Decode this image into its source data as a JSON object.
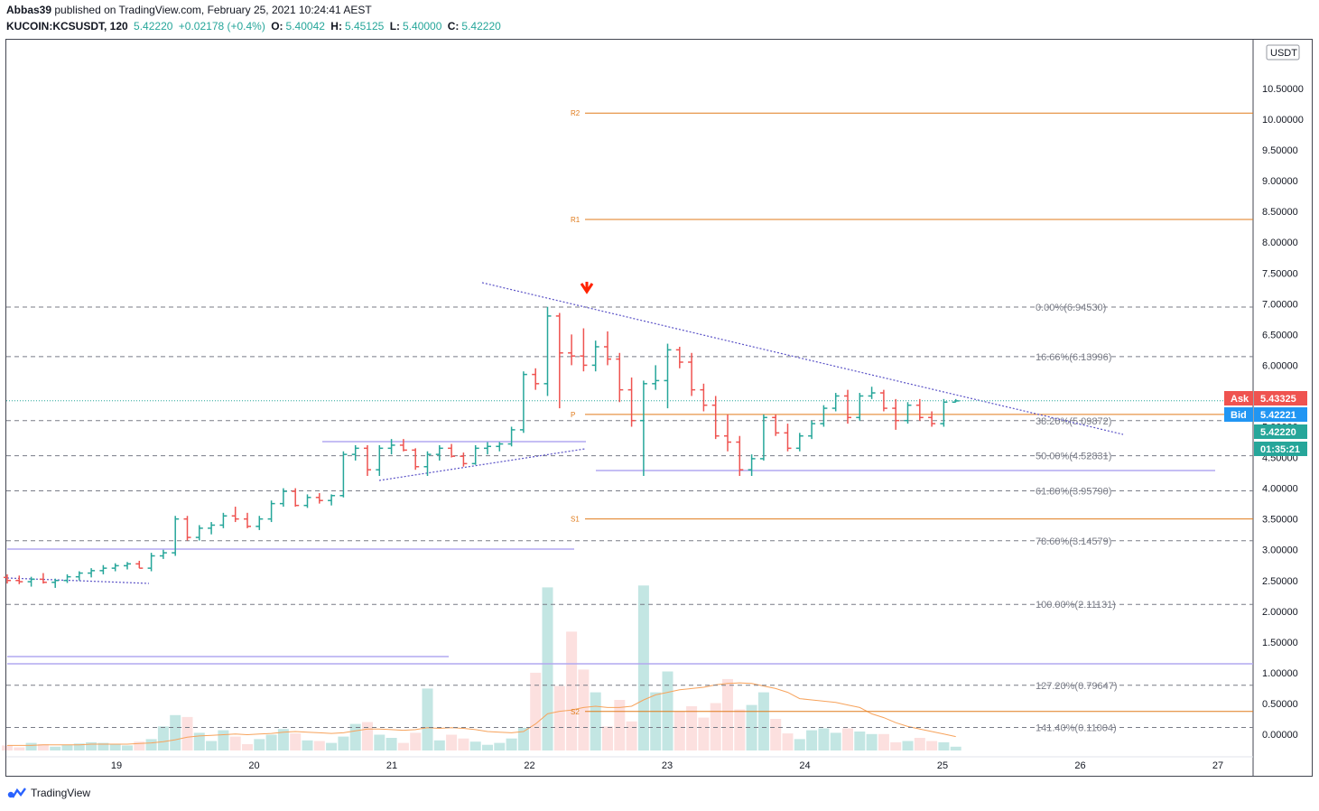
{
  "header": {
    "author": "Abbas39",
    "published_text": "published on TradingView.com, February 25, 2021 10:24:41 AEST",
    "symbol": "KUCOIN:KCSUSDT, 120",
    "last": "5.42220",
    "change": "+0.02178 (+0.4%)",
    "o_label": "O:",
    "o": "5.40042",
    "h_label": "H:",
    "h": "5.45125",
    "l_label": "L:",
    "l": "5.40000",
    "c_label": "C:",
    "c": "5.42220"
  },
  "footer": {
    "brand": "TradingView"
  },
  "colors": {
    "up": "#26a69a",
    "down": "#ef5350",
    "pivot": "#e07b1b",
    "trend": "#5b53c7",
    "fib": "#787b86",
    "ma": "#f7a35c"
  },
  "chart_data": {
    "type": "candlestick",
    "currency_badge": "USDT",
    "x_ticks": [
      "19",
      "20",
      "21",
      "22",
      "23",
      "24",
      "25",
      "26",
      "27"
    ],
    "y_ticks": [
      "0.00000",
      "0.50000",
      "1.00000",
      "1.50000",
      "2.00000",
      "2.50000",
      "3.00000",
      "3.50000",
      "4.00000",
      "4.50000",
      "5.00000",
      "5.50000",
      "6.00000",
      "6.50000",
      "7.00000",
      "7.50000",
      "8.00000",
      "8.50000",
      "9.00000",
      "9.50000",
      "10.00000",
      "10.50000"
    ],
    "ylim": [
      -0.2,
      11.2
    ],
    "fib_levels": [
      {
        "label": "0.00%(6.94530)",
        "value": 6.9453
      },
      {
        "label": "16.66%(6.13996)",
        "value": 6.13996
      },
      {
        "label": "38.20%(5.09872)",
        "value": 5.09872
      },
      {
        "label": "50.00%(4.52831)",
        "value": 4.52831
      },
      {
        "label": "61.80%(3.95790)",
        "value": 3.9579
      },
      {
        "label": "78.60%(3.14579)",
        "value": 3.14579
      },
      {
        "label": "100.00%(2.11131)",
        "value": 2.11131
      },
      {
        "label": "127.20%(0.79647)",
        "value": 0.79647
      },
      {
        "label": "141.40%(0.11004)",
        "value": 0.11004
      }
    ],
    "pivots": [
      {
        "label": "R2",
        "value": 10.1
      },
      {
        "label": "R1",
        "value": 8.37
      },
      {
        "label": "P",
        "value": 5.2
      },
      {
        "label": "S1",
        "value": 3.5
      },
      {
        "label": "S2",
        "value": 0.37
      }
    ],
    "price_tags": [
      {
        "label": "Ask",
        "value": "5.43325"
      },
      {
        "label": "Bid",
        "value": "5.42221"
      },
      {
        "label": "",
        "value": "5.42220"
      },
      {
        "label": "",
        "value": "01:35:21"
      }
    ],
    "candles": [
      [
        2.55,
        2.6,
        2.45,
        2.5
      ],
      [
        2.5,
        2.58,
        2.44,
        2.48
      ],
      [
        2.48,
        2.56,
        2.4,
        2.52
      ],
      [
        2.52,
        2.62,
        2.45,
        2.47
      ],
      [
        2.47,
        2.53,
        2.38,
        2.5
      ],
      [
        2.5,
        2.6,
        2.46,
        2.56
      ],
      [
        2.56,
        2.65,
        2.5,
        2.62
      ],
      [
        2.62,
        2.7,
        2.55,
        2.66
      ],
      [
        2.66,
        2.75,
        2.6,
        2.7
      ],
      [
        2.7,
        2.78,
        2.65,
        2.74
      ],
      [
        2.74,
        2.8,
        2.68,
        2.77
      ],
      [
        2.77,
        2.82,
        2.7,
        2.7
      ],
      [
        2.7,
        2.95,
        2.65,
        2.9
      ],
      [
        2.9,
        3.0,
        2.85,
        2.95
      ],
      [
        2.95,
        3.55,
        2.9,
        3.5
      ],
      [
        3.5,
        3.55,
        3.15,
        3.2
      ],
      [
        3.2,
        3.4,
        3.15,
        3.35
      ],
      [
        3.35,
        3.45,
        3.25,
        3.4
      ],
      [
        3.4,
        3.6,
        3.35,
        3.55
      ],
      [
        3.55,
        3.7,
        3.45,
        3.5
      ],
      [
        3.5,
        3.6,
        3.35,
        3.38
      ],
      [
        3.38,
        3.55,
        3.32,
        3.5
      ],
      [
        3.5,
        3.8,
        3.45,
        3.75
      ],
      [
        3.75,
        4.0,
        3.7,
        3.95
      ],
      [
        3.95,
        4.0,
        3.7,
        3.72
      ],
      [
        3.72,
        3.9,
        3.68,
        3.85
      ],
      [
        3.85,
        3.92,
        3.75,
        3.8
      ],
      [
        3.8,
        3.9,
        3.72,
        3.88
      ],
      [
        3.88,
        4.6,
        3.85,
        4.55
      ],
      [
        4.55,
        4.7,
        4.45,
        4.65
      ],
      [
        4.65,
        4.7,
        4.2,
        4.3
      ],
      [
        4.3,
        4.7,
        4.2,
        4.65
      ],
      [
        4.65,
        4.8,
        4.55,
        4.7
      ],
      [
        4.7,
        4.8,
        4.6,
        4.62
      ],
      [
        4.62,
        4.65,
        4.3,
        4.35
      ],
      [
        4.35,
        4.6,
        4.2,
        4.55
      ],
      [
        4.55,
        4.7,
        4.45,
        4.65
      ],
      [
        4.65,
        4.72,
        4.5,
        4.52
      ],
      [
        4.52,
        4.58,
        4.35,
        4.4
      ],
      [
        4.4,
        4.7,
        4.38,
        4.65
      ],
      [
        4.65,
        4.75,
        4.55,
        4.68
      ],
      [
        4.68,
        4.75,
        4.6,
        4.72
      ],
      [
        4.72,
        5.0,
        4.68,
        4.95
      ],
      [
        4.95,
        5.9,
        4.9,
        5.85
      ],
      [
        5.85,
        5.95,
        5.6,
        5.7
      ],
      [
        5.7,
        6.95,
        5.5,
        6.8
      ],
      [
        6.8,
        6.85,
        5.3,
        6.2
      ],
      [
        6.2,
        6.5,
        6.0,
        6.15
      ],
      [
        6.15,
        6.6,
        5.9,
        6.0
      ],
      [
        6.0,
        6.4,
        5.9,
        6.3
      ],
      [
        6.3,
        6.55,
        6.0,
        6.1
      ],
      [
        6.1,
        6.2,
        5.4,
        5.6
      ],
      [
        5.6,
        5.8,
        5.0,
        5.1
      ],
      [
        5.1,
        5.75,
        4.2,
        5.7
      ],
      [
        5.7,
        6.0,
        5.6,
        5.75
      ],
      [
        5.75,
        6.35,
        5.3,
        6.25
      ],
      [
        6.25,
        6.3,
        5.95,
        6.05
      ],
      [
        6.05,
        6.2,
        5.5,
        5.6
      ],
      [
        5.6,
        5.7,
        5.25,
        5.35
      ],
      [
        5.35,
        5.5,
        4.8,
        4.85
      ],
      [
        4.85,
        5.2,
        4.6,
        4.75
      ],
      [
        4.75,
        4.85,
        4.2,
        4.3
      ],
      [
        4.3,
        4.55,
        4.2,
        4.48
      ],
      [
        4.48,
        5.2,
        4.45,
        5.15
      ],
      [
        5.15,
        5.2,
        4.85,
        4.9
      ],
      [
        4.9,
        5.05,
        4.6,
        4.65
      ],
      [
        4.65,
        4.9,
        4.6,
        4.85
      ],
      [
        4.85,
        5.1,
        4.8,
        5.05
      ],
      [
        5.05,
        5.35,
        5.0,
        5.3
      ],
      [
        5.3,
        5.55,
        5.25,
        5.5
      ],
      [
        5.5,
        5.6,
        5.05,
        5.15
      ],
      [
        5.15,
        5.55,
        5.1,
        5.5
      ],
      [
        5.5,
        5.65,
        5.45,
        5.55
      ],
      [
        5.55,
        5.6,
        5.25,
        5.3
      ],
      [
        5.3,
        5.45,
        4.95,
        5.1
      ],
      [
        5.1,
        5.4,
        5.05,
        5.35
      ],
      [
        5.35,
        5.45,
        5.1,
        5.15
      ],
      [
        5.15,
        5.25,
        5.0,
        5.05
      ],
      [
        5.05,
        5.45,
        5.0,
        5.4
      ],
      [
        5.4,
        5.45,
        5.4,
        5.42
      ]
    ],
    "volume": [
      0.08,
      0.05,
      0.12,
      0.1,
      0.06,
      0.09,
      0.11,
      0.13,
      0.12,
      0.1,
      0.08,
      0.14,
      0.18,
      0.38,
      0.56,
      0.53,
      0.28,
      0.15,
      0.32,
      0.22,
      0.1,
      0.18,
      0.25,
      0.34,
      0.27,
      0.16,
      0.15,
      0.12,
      0.22,
      0.42,
      0.45,
      0.25,
      0.2,
      0.12,
      0.28,
      0.98,
      0.16,
      0.25,
      0.19,
      0.14,
      0.09,
      0.12,
      0.19,
      0.36,
      1.23,
      2.58,
      1.02,
      1.88,
      1.28,
      0.92,
      0.38,
      0.8,
      0.46,
      2.61,
      0.92,
      1.25,
      0.62,
      0.7,
      0.52,
      0.75,
      1.13,
      0.65,
      0.72,
      0.92,
      0.5,
      0.27,
      0.18,
      0.32,
      0.35,
      0.28,
      0.35,
      0.3,
      0.26,
      0.26,
      0.13,
      0.15,
      0.2,
      0.15,
      0.13,
      0.06
    ],
    "volume_ma": [
      0.08,
      0.08,
      0.08,
      0.09,
      0.09,
      0.09,
      0.09,
      0.1,
      0.1,
      0.1,
      0.1,
      0.11,
      0.12,
      0.14,
      0.17,
      0.21,
      0.23,
      0.24,
      0.25,
      0.26,
      0.25,
      0.26,
      0.27,
      0.29,
      0.3,
      0.29,
      0.28,
      0.27,
      0.28,
      0.31,
      0.34,
      0.34,
      0.33,
      0.32,
      0.33,
      0.36,
      0.35,
      0.36,
      0.35,
      0.33,
      0.3,
      0.29,
      0.28,
      0.3,
      0.42,
      0.58,
      0.62,
      0.64,
      0.68,
      0.7,
      0.68,
      0.68,
      0.7,
      0.8,
      0.88,
      0.92,
      0.96,
      0.98,
      1.0,
      1.04,
      1.06,
      1.07,
      1.06,
      1.02,
      0.98,
      0.92,
      0.82,
      0.8,
      0.78,
      0.76,
      0.72,
      0.68,
      0.58,
      0.52,
      0.44,
      0.38,
      0.34,
      0.3,
      0.26,
      0.22
    ]
  }
}
